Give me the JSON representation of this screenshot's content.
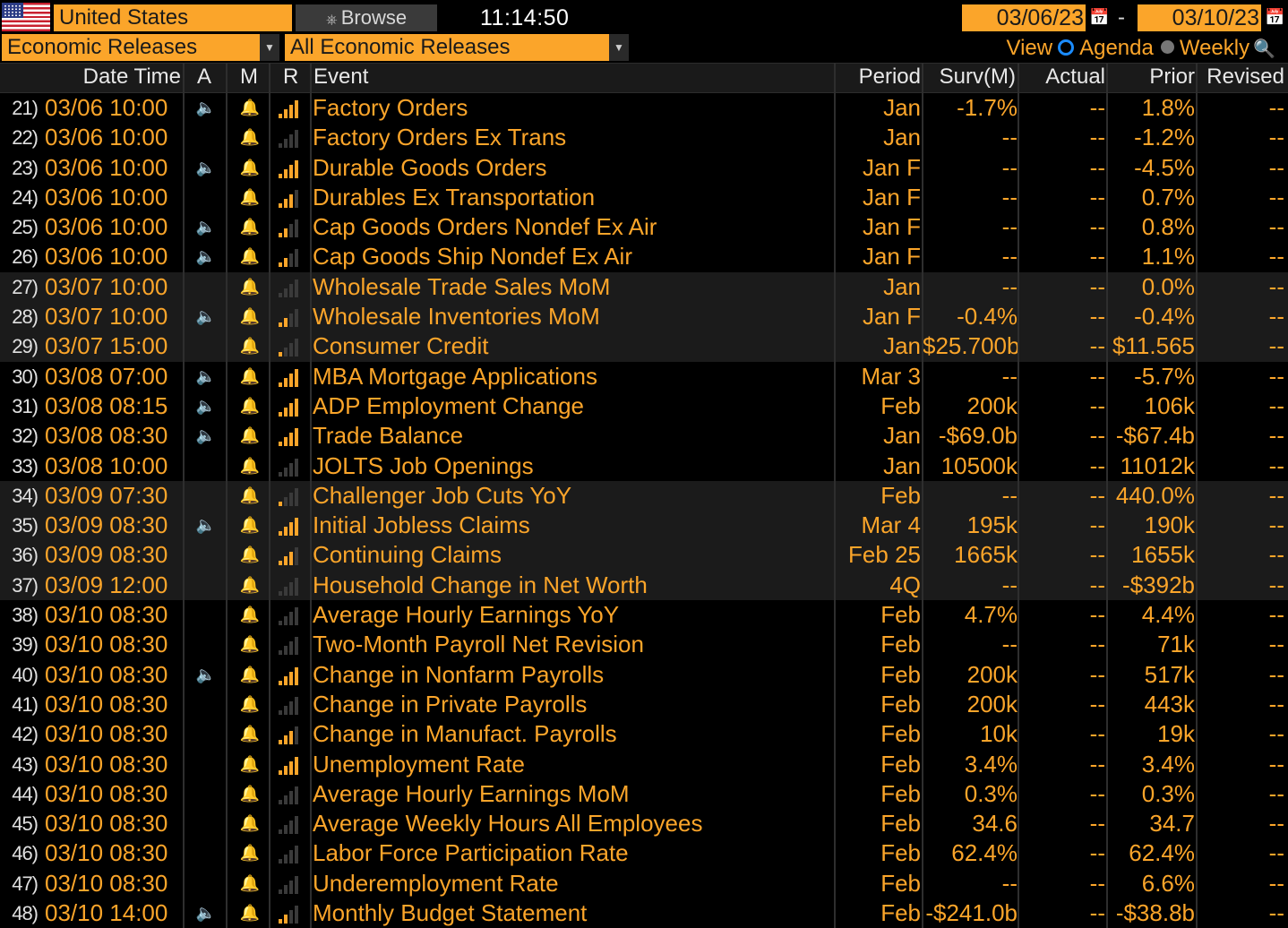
{
  "toolbar": {
    "country": "United States",
    "browse_label": "Browse",
    "clock": "11:14:50",
    "date_from": "03/06/23",
    "date_sep": "-",
    "date_to": "03/10/23",
    "category": "Economic Releases",
    "filter": "All Economic Releases",
    "view_label": "View",
    "view_agenda": "Agenda",
    "view_weekly": "Weekly"
  },
  "columns": {
    "datetime": "Date Time",
    "a": "A",
    "m": "M",
    "r": "R",
    "event": "Event",
    "period": "Period",
    "surv": "Surv(M)",
    "actual": "Actual",
    "prior": "Prior",
    "revised": "Revised"
  },
  "colors": {
    "accent": "#fba52a",
    "text_orange": "#fba52a",
    "background": "#000000",
    "row_alt": "#1b1b1b"
  },
  "rows": [
    {
      "num": "21)",
      "dt": "03/06 10:00",
      "alert": true,
      "rel": 4,
      "event": "Factory Orders",
      "period": "Jan",
      "surv": "-1.7%",
      "actual": "--",
      "prior": "1.8%",
      "revised": "--",
      "shade": false
    },
    {
      "num": "22)",
      "dt": "03/06 10:00",
      "alert": false,
      "rel": 0,
      "event": "Factory Orders Ex Trans",
      "period": "Jan",
      "surv": "--",
      "actual": "--",
      "prior": "-1.2%",
      "revised": "--",
      "shade": false
    },
    {
      "num": "23)",
      "dt": "03/06 10:00",
      "alert": true,
      "rel": 4,
      "event": "Durable Goods Orders",
      "period": "Jan F",
      "surv": "--",
      "actual": "--",
      "prior": "-4.5%",
      "revised": "--",
      "shade": false
    },
    {
      "num": "24)",
      "dt": "03/06 10:00",
      "alert": false,
      "rel": 3,
      "event": "Durables Ex Transportation",
      "period": "Jan F",
      "surv": "--",
      "actual": "--",
      "prior": "0.7%",
      "revised": "--",
      "shade": false
    },
    {
      "num": "25)",
      "dt": "03/06 10:00",
      "alert": true,
      "rel": 2,
      "event": "Cap Goods Orders Nondef Ex Air",
      "period": "Jan F",
      "surv": "--",
      "actual": "--",
      "prior": "0.8%",
      "revised": "--",
      "shade": false
    },
    {
      "num": "26)",
      "dt": "03/06 10:00",
      "alert": true,
      "rel": 2,
      "event": "Cap Goods Ship Nondef Ex Air",
      "period": "Jan F",
      "surv": "--",
      "actual": "--",
      "prior": "1.1%",
      "revised": "--",
      "shade": false
    },
    {
      "num": "27)",
      "dt": "03/07 10:00",
      "alert": false,
      "rel": 0,
      "event": "Wholesale Trade Sales MoM",
      "period": "Jan",
      "surv": "--",
      "actual": "--",
      "prior": "0.0%",
      "revised": "--",
      "shade": true
    },
    {
      "num": "28)",
      "dt": "03/07 10:00",
      "alert": true,
      "rel": 2,
      "event": "Wholesale Inventories MoM",
      "period": "Jan F",
      "surv": "-0.4%",
      "actual": "--",
      "prior": "-0.4%",
      "revised": "--",
      "shade": true
    },
    {
      "num": "29)",
      "dt": "03/07 15:00",
      "alert": false,
      "rel": 1,
      "event": "Consumer Credit",
      "period": "Jan",
      "surv": "$25.700b",
      "actual": "--",
      "prior": "$11.565",
      "revised": "--",
      "shade": true
    },
    {
      "num": "30)",
      "dt": "03/08 07:00",
      "alert": true,
      "rel": 4,
      "event": "MBA Mortgage Applications",
      "period": "Mar 3",
      "surv": "--",
      "actual": "--",
      "prior": "-5.7%",
      "revised": "--",
      "shade": false
    },
    {
      "num": "31)",
      "dt": "03/08 08:15",
      "alert": true,
      "rel": 4,
      "event": "ADP Employment Change",
      "period": "Feb",
      "surv": "200k",
      "actual": "--",
      "prior": "106k",
      "revised": "--",
      "shade": false
    },
    {
      "num": "32)",
      "dt": "03/08 08:30",
      "alert": true,
      "rel": 4,
      "event": "Trade Balance",
      "period": "Jan",
      "surv": "-$69.0b",
      "actual": "--",
      "prior": "-$67.4b",
      "revised": "--",
      "shade": false
    },
    {
      "num": "33)",
      "dt": "03/08 10:00",
      "alert": false,
      "rel": 0,
      "event": "JOLTS Job Openings",
      "period": "Jan",
      "surv": "10500k",
      "actual": "--",
      "prior": "11012k",
      "revised": "--",
      "shade": false
    },
    {
      "num": "34)",
      "dt": "03/09 07:30",
      "alert": false,
      "rel": 1,
      "event": "Challenger Job Cuts YoY",
      "period": "Feb",
      "surv": "--",
      "actual": "--",
      "prior": "440.0%",
      "revised": "--",
      "shade": true
    },
    {
      "num": "35)",
      "dt": "03/09 08:30",
      "alert": true,
      "rel": 4,
      "event": "Initial Jobless Claims",
      "period": "Mar 4",
      "surv": "195k",
      "actual": "--",
      "prior": "190k",
      "revised": "--",
      "shade": true
    },
    {
      "num": "36)",
      "dt": "03/09 08:30",
      "alert": false,
      "rel": 3,
      "event": "Continuing Claims",
      "period": "Feb 25",
      "surv": "1665k",
      "actual": "--",
      "prior": "1655k",
      "revised": "--",
      "shade": true
    },
    {
      "num": "37)",
      "dt": "03/09 12:00",
      "alert": false,
      "rel": 0,
      "event": "Household Change in Net Worth",
      "period": "4Q",
      "surv": "--",
      "actual": "--",
      "prior": "-$392b",
      "revised": "--",
      "shade": true
    },
    {
      "num": "38)",
      "dt": "03/10 08:30",
      "alert": false,
      "rel": 0,
      "event": "Average Hourly Earnings YoY",
      "period": "Feb",
      "surv": "4.7%",
      "actual": "--",
      "prior": "4.4%",
      "revised": "--",
      "shade": false
    },
    {
      "num": "39)",
      "dt": "03/10 08:30",
      "alert": false,
      "rel": 0,
      "event": "Two-Month Payroll Net Revision",
      "period": "Feb",
      "surv": "--",
      "actual": "--",
      "prior": "71k",
      "revised": "--",
      "shade": false
    },
    {
      "num": "40)",
      "dt": "03/10 08:30",
      "alert": true,
      "rel": 4,
      "event": "Change in Nonfarm Payrolls",
      "period": "Feb",
      "surv": "200k",
      "actual": "--",
      "prior": "517k",
      "revised": "--",
      "shade": false
    },
    {
      "num": "41)",
      "dt": "03/10 08:30",
      "alert": false,
      "rel": 0,
      "event": "Change in Private Payrolls",
      "period": "Feb",
      "surv": "200k",
      "actual": "--",
      "prior": "443k",
      "revised": "--",
      "shade": false
    },
    {
      "num": "42)",
      "dt": "03/10 08:30",
      "alert": false,
      "rel": 3,
      "event": "Change in Manufact. Payrolls",
      "period": "Feb",
      "surv": "10k",
      "actual": "--",
      "prior": "19k",
      "revised": "--",
      "shade": false
    },
    {
      "num": "43)",
      "dt": "03/10 08:30",
      "alert": false,
      "rel": 4,
      "event": "Unemployment Rate",
      "period": "Feb",
      "surv": "3.4%",
      "actual": "--",
      "prior": "3.4%",
      "revised": "--",
      "shade": false
    },
    {
      "num": "44)",
      "dt": "03/10 08:30",
      "alert": false,
      "rel": 0,
      "event": "Average Hourly Earnings MoM",
      "period": "Feb",
      "surv": "0.3%",
      "actual": "--",
      "prior": "0.3%",
      "revised": "--",
      "shade": false
    },
    {
      "num": "45)",
      "dt": "03/10 08:30",
      "alert": false,
      "rel": 0,
      "event": "Average Weekly Hours All Employees",
      "period": "Feb",
      "surv": "34.6",
      "actual": "--",
      "prior": "34.7",
      "revised": "--",
      "shade": false
    },
    {
      "num": "46)",
      "dt": "03/10 08:30",
      "alert": false,
      "rel": 0,
      "event": "Labor Force Participation Rate",
      "period": "Feb",
      "surv": "62.4%",
      "actual": "--",
      "prior": "62.4%",
      "revised": "--",
      "shade": false
    },
    {
      "num": "47)",
      "dt": "03/10 08:30",
      "alert": false,
      "rel": 0,
      "event": "Underemployment Rate",
      "period": "Feb",
      "surv": "--",
      "actual": "--",
      "prior": "6.6%",
      "revised": "--",
      "shade": false
    },
    {
      "num": "48)",
      "dt": "03/10 14:00",
      "alert": true,
      "rel": 2,
      "event": "Monthly Budget Statement",
      "period": "Feb",
      "surv": "-$241.0b",
      "actual": "--",
      "prior": "-$38.8b",
      "revised": "--",
      "shade": false
    }
  ]
}
